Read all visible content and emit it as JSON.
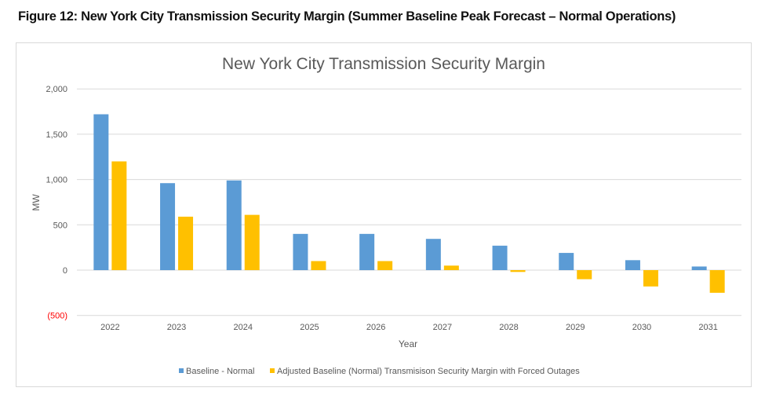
{
  "figure_caption": "Figure 12: New York City Transmission Security Margin (Summer Baseline Peak Forecast – Normal Operations)",
  "chart_data": {
    "type": "bar",
    "title": "New York City Transmission Security Margin",
    "xlabel": "Year",
    "ylabel": "MW",
    "ylim": [
      -500,
      2000
    ],
    "yticks": [
      2000,
      1500,
      1000,
      500,
      0,
      -500
    ],
    "ytick_labels": [
      "2,000",
      "1,500",
      "1,000",
      "500",
      "0",
      "(500)"
    ],
    "negative_tick_color": "#ff0000",
    "grid": true,
    "legend_position": "bottom",
    "categories": [
      "2022",
      "2023",
      "2024",
      "2025",
      "2026",
      "2027",
      "2028",
      "2029",
      "2030",
      "2031"
    ],
    "series": [
      {
        "name": "Baseline - Normal",
        "color": "#5b9bd5",
        "values": [
          1720,
          960,
          990,
          400,
          400,
          345,
          270,
          190,
          110,
          40
        ]
      },
      {
        "name": "Adjusted Baseline (Normal) Transmisison Security Margin with Forced Outages",
        "color": "#ffc000",
        "values": [
          1200,
          590,
          610,
          100,
          100,
          50,
          -20,
          -100,
          -180,
          -250
        ]
      }
    ]
  }
}
